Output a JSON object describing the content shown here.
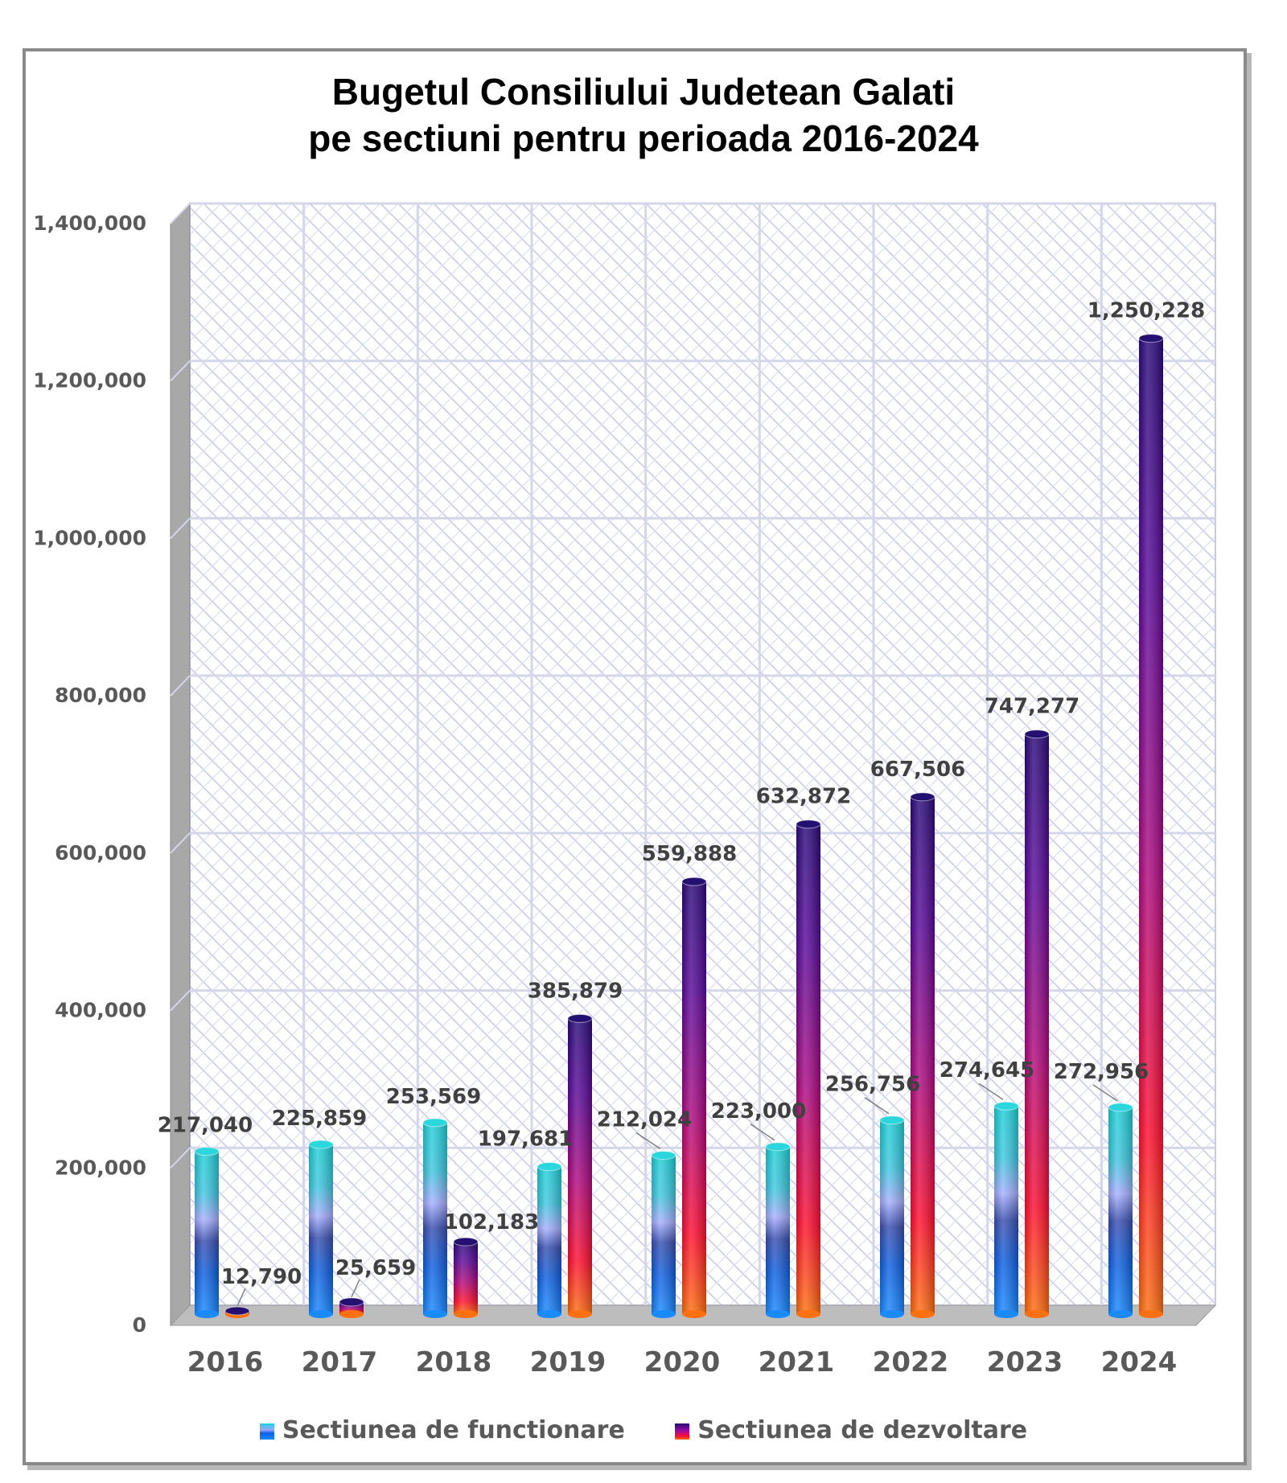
{
  "chart_data": {
    "type": "bar",
    "title": [
      "Bugetul Consiliului Judetean Galati",
      "pe sectiuni pentru perioada 2016-2024"
    ],
    "categories": [
      "2016",
      "2017",
      "2018",
      "2019",
      "2020",
      "2021",
      "2022",
      "2023",
      "2024"
    ],
    "series": [
      {
        "name": "Sectiunea de functionare",
        "values": [
          217040,
          225859,
          253569,
          197681,
          212024,
          223000,
          256756,
          274645,
          272956
        ],
        "labels": [
          "217,040",
          "225,859",
          "253,569",
          "197,681",
          "212,024",
          "223,000",
          "256,756",
          "274,645",
          "272,956"
        ]
      },
      {
        "name": "Sectiunea de dezvoltare",
        "values": [
          12790,
          25659,
          102183,
          385879,
          559888,
          632872,
          667506,
          747277,
          1250228
        ],
        "labels": [
          "12,790",
          "25,659",
          "102,183",
          "385,879",
          "559,888",
          "632,872",
          "667,506",
          "747,277",
          "1,250,228"
        ]
      }
    ],
    "ylim": [
      0,
      1400000
    ],
    "yticks": [
      "0",
      "200,000",
      "400,000",
      "600,000",
      "800,000",
      "1,000,000",
      "1,200,000",
      "1,400,000"
    ],
    "ytick_values": [
      0,
      200000,
      400000,
      600000,
      800000,
      1000000,
      1200000,
      1400000
    ],
    "grid": true,
    "legend_position": "bottom",
    "colors": {
      "functionare": [
        "#1fd0d8",
        "#9aa8ff",
        "#1060e0",
        "#1a8aff"
      ],
      "dezvoltare": [
        "#2a0a7a",
        "#9a0aa0",
        "#ff1030",
        "#ff7010"
      ]
    }
  }
}
